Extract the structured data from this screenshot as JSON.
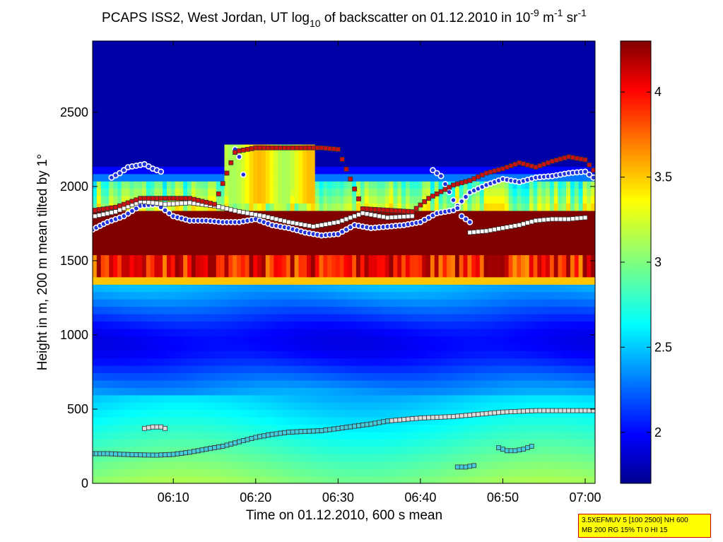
{
  "chart_data": {
    "type": "heatmap",
    "title": {
      "prefix": "PCAPS ISS2, West Jordan, UT log",
      "log_base": "10",
      "middle": " of backscatter on 01.12.2010 in 10",
      "exp1": "-9",
      "unit1": " m",
      "exp2": "-1",
      "unit2": " sr",
      "exp3": "-1"
    },
    "xlabel": "Time on 01.12.2010, 600 s mean",
    "ylabel": "Height in m, 200 m mean tilted by 1°",
    "x_ticks": [
      "06:10",
      "06:20",
      "06:30",
      "06:40",
      "06:50",
      "07:00"
    ],
    "x_tick_minutes": [
      10,
      20,
      30,
      40,
      50,
      60
    ],
    "xlim_minutes": [
      0.2,
      61.2
    ],
    "y_ticks": [
      "0",
      "500",
      "1000",
      "1500",
      "2000",
      "2500"
    ],
    "y_tick_values": [
      0,
      500,
      1000,
      1500,
      2000,
      2500
    ],
    "ylim": [
      0,
      2980
    ],
    "colorbar": {
      "ticks": [
        "2",
        "2.5",
        "3",
        "3.5",
        "4"
      ],
      "tick_values": [
        2,
        2.5,
        3,
        3.5,
        4
      ],
      "range": [
        1.7,
        4.3
      ],
      "colormap": "jet"
    },
    "colors": {
      "background": "#ffffff",
      "text": "#000000"
    },
    "layers": {
      "cloud_base": 1400,
      "cloud_top": 1800,
      "high_cloud_times": [
        16,
        27
      ],
      "high_cloud_top": 2260
    },
    "series": [
      {
        "marker": "circle",
        "color": "#2233dd",
        "edge": "#ffffff",
        "x": [
          0.2,
          2,
          4,
          6,
          8,
          10,
          12,
          14,
          16,
          18,
          20,
          22,
          24,
          26,
          28,
          30,
          32,
          34,
          36,
          38,
          40,
          42,
          44,
          46,
          48,
          50,
          52,
          54,
          56,
          58,
          60,
          61
        ],
        "y": [
          1710,
          1760,
          1800,
          1870,
          1880,
          1800,
          1770,
          1770,
          1760,
          1760,
          1780,
          1740,
          1720,
          1690,
          1670,
          1680,
          1740,
          1720,
          1730,
          1740,
          1760,
          1820,
          1840,
          1960,
          2010,
          2050,
          2030,
          2060,
          2070,
          2090,
          2100,
          2060
        ]
      },
      {
        "marker": "circle",
        "color": "#2233dd",
        "edge": "#ffffff",
        "x": [
          2.5,
          3.5,
          4.5,
          5.5,
          6.5,
          7.5,
          8.5,
          17.5,
          18,
          18.5,
          41.5,
          42.5,
          45,
          46
        ],
        "y": [
          2060,
          2090,
          2130,
          2140,
          2150,
          2120,
          2100,
          2250,
          2200,
          2080,
          2110,
          2070,
          1800,
          1760
        ]
      },
      {
        "marker": "square",
        "color": "#ffffff",
        "x": [
          0.5,
          3,
          6,
          9,
          12,
          15,
          18,
          21,
          24,
          27,
          30,
          33,
          36,
          39,
          46,
          48,
          50,
          52,
          54,
          56,
          58,
          60
        ],
        "y": [
          1800,
          1830,
          1900,
          1880,
          1890,
          1870,
          1830,
          1800,
          1760,
          1730,
          1760,
          1820,
          1790,
          1800,
          1690,
          1700,
          1720,
          1740,
          1770,
          1780,
          1780,
          1790
        ]
      },
      {
        "marker": "square",
        "color": "#cc1111",
        "x": [
          0.5,
          3,
          6,
          9,
          12,
          15,
          17.5,
          18,
          20,
          22,
          24,
          26,
          28,
          30,
          33,
          36,
          39,
          41,
          44,
          46,
          48,
          50,
          52,
          54,
          56,
          58,
          60,
          61
        ],
        "y": [
          1840,
          1860,
          1920,
          1920,
          1920,
          1880,
          2230,
          2240,
          2260,
          2260,
          2260,
          2260,
          2260,
          2250,
          1850,
          1840,
          1830,
          1920,
          2010,
          2040,
          2090,
          2120,
          2160,
          2130,
          2170,
          2200,
          2180,
          2110
        ]
      },
      {
        "marker": "square",
        "color": "#dddddd",
        "x": [
          0.2,
          2,
          4,
          6,
          8,
          10,
          12,
          14,
          16,
          18,
          20,
          22,
          24,
          26,
          28,
          30,
          32,
          34,
          36,
          38,
          40,
          42,
          44,
          46,
          48,
          50,
          52,
          54,
          56,
          58,
          60,
          61
        ],
        "y": [
          200,
          200,
          195,
          192,
          190,
          195,
          210,
          230,
          250,
          280,
          310,
          330,
          345,
          350,
          355,
          370,
          385,
          400,
          420,
          430,
          440,
          445,
          450,
          460,
          470,
          480,
          485,
          490,
          490,
          490,
          490,
          490
        ]
      },
      {
        "marker": "square",
        "color": "#dddddd",
        "x": [
          6.5,
          7.5,
          8.5,
          9
        ],
        "y": [
          370,
          380,
          380,
          370
        ]
      },
      {
        "marker": "square",
        "color": "#44ccdd",
        "x": [
          0.2,
          2,
          4,
          6,
          8,
          10,
          12,
          14,
          16,
          18,
          20,
          22,
          24,
          26,
          28,
          30,
          32,
          34,
          36
        ],
        "y": [
          200,
          200,
          195,
          192,
          190,
          195,
          210,
          230,
          250,
          280,
          310,
          330,
          345,
          350,
          355,
          370,
          385,
          400,
          420
        ]
      },
      {
        "marker": "square",
        "color": "#44ccdd",
        "x": [
          49.5,
          50.5,
          51.5,
          52.5,
          53.5,
          44.5,
          45.5,
          46.5
        ],
        "y": [
          240,
          220,
          220,
          230,
          250,
          110,
          110,
          120
        ]
      }
    ]
  },
  "info_box": {
    "line1": "3.5XEFMUV 5 [100 2500] NH 600",
    "line2": "MB 200 RG 15% TI 0 HI 15",
    "background": "#ffff00",
    "border": "#cc0000"
  }
}
